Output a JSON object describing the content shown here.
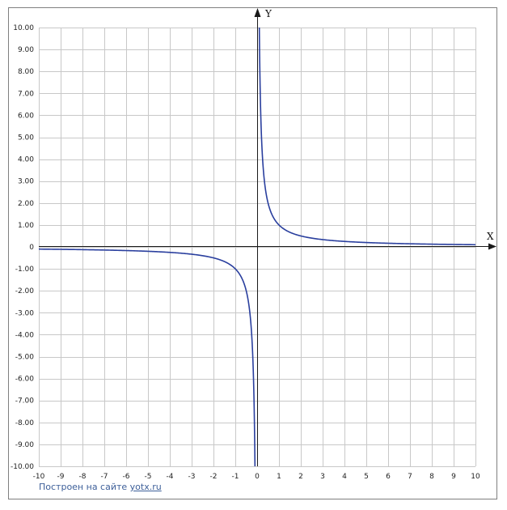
{
  "chart_data": {
    "type": "line",
    "function": "y = 1/x",
    "xlabel": "X",
    "ylabel": "Y",
    "xlim": [
      -10,
      10
    ],
    "ylim": [
      -10,
      10
    ],
    "x_ticks": [
      "-10",
      "-9",
      "-8",
      "-7",
      "-6",
      "-5",
      "-4",
      "-3",
      "-2",
      "-1",
      "0",
      "1",
      "2",
      "3",
      "4",
      "5",
      "6",
      "7",
      "8",
      "9",
      "10"
    ],
    "y_ticks": [
      "10.00",
      "9.00",
      "8.00",
      "7.00",
      "6.00",
      "5.00",
      "4.00",
      "3.00",
      "2.00",
      "1.00",
      "0",
      "-1.00",
      "-2.00",
      "-3.00",
      "-4.00",
      "-5.00",
      "-6.00",
      "-7.00",
      "-8.00",
      "-9.00",
      "-10.00"
    ],
    "grid": true,
    "series": [
      {
        "color": "#2a3f9e",
        "branches": [
          {
            "x": [
              -10,
              -8,
              -6,
              -5,
              -4,
              -3,
              -2,
              -1.5,
              -1,
              -0.8,
              -0.6,
              -0.5,
              -0.4,
              -0.3,
              -0.2,
              -0.15,
              -0.1
            ],
            "y": [
              -0.1,
              -0.125,
              -0.167,
              -0.2,
              -0.25,
              -0.333,
              -0.5,
              -0.667,
              -1,
              -1.25,
              -1.667,
              -2,
              -2.5,
              -3.333,
              -5,
              -6.667,
              -10
            ]
          },
          {
            "x": [
              0.1,
              0.15,
              0.2,
              0.3,
              0.4,
              0.5,
              0.6,
              0.8,
              1,
              1.5,
              2,
              3,
              4,
              5,
              6,
              8,
              10
            ],
            "y": [
              10,
              6.667,
              5,
              3.333,
              2.5,
              2,
              1.667,
              1.25,
              1,
              0.667,
              0.5,
              0.333,
              0.25,
              0.2,
              0.167,
              0.125,
              0.1
            ]
          }
        ]
      }
    ],
    "colors": {
      "grid": "#c8c8c8",
      "axis": "#1a1a1a",
      "curve": "#2a3f9e",
      "credit": "#3d5f99"
    }
  },
  "credit": {
    "text": "Построен на сайте",
    "link": "yotx.ru"
  }
}
